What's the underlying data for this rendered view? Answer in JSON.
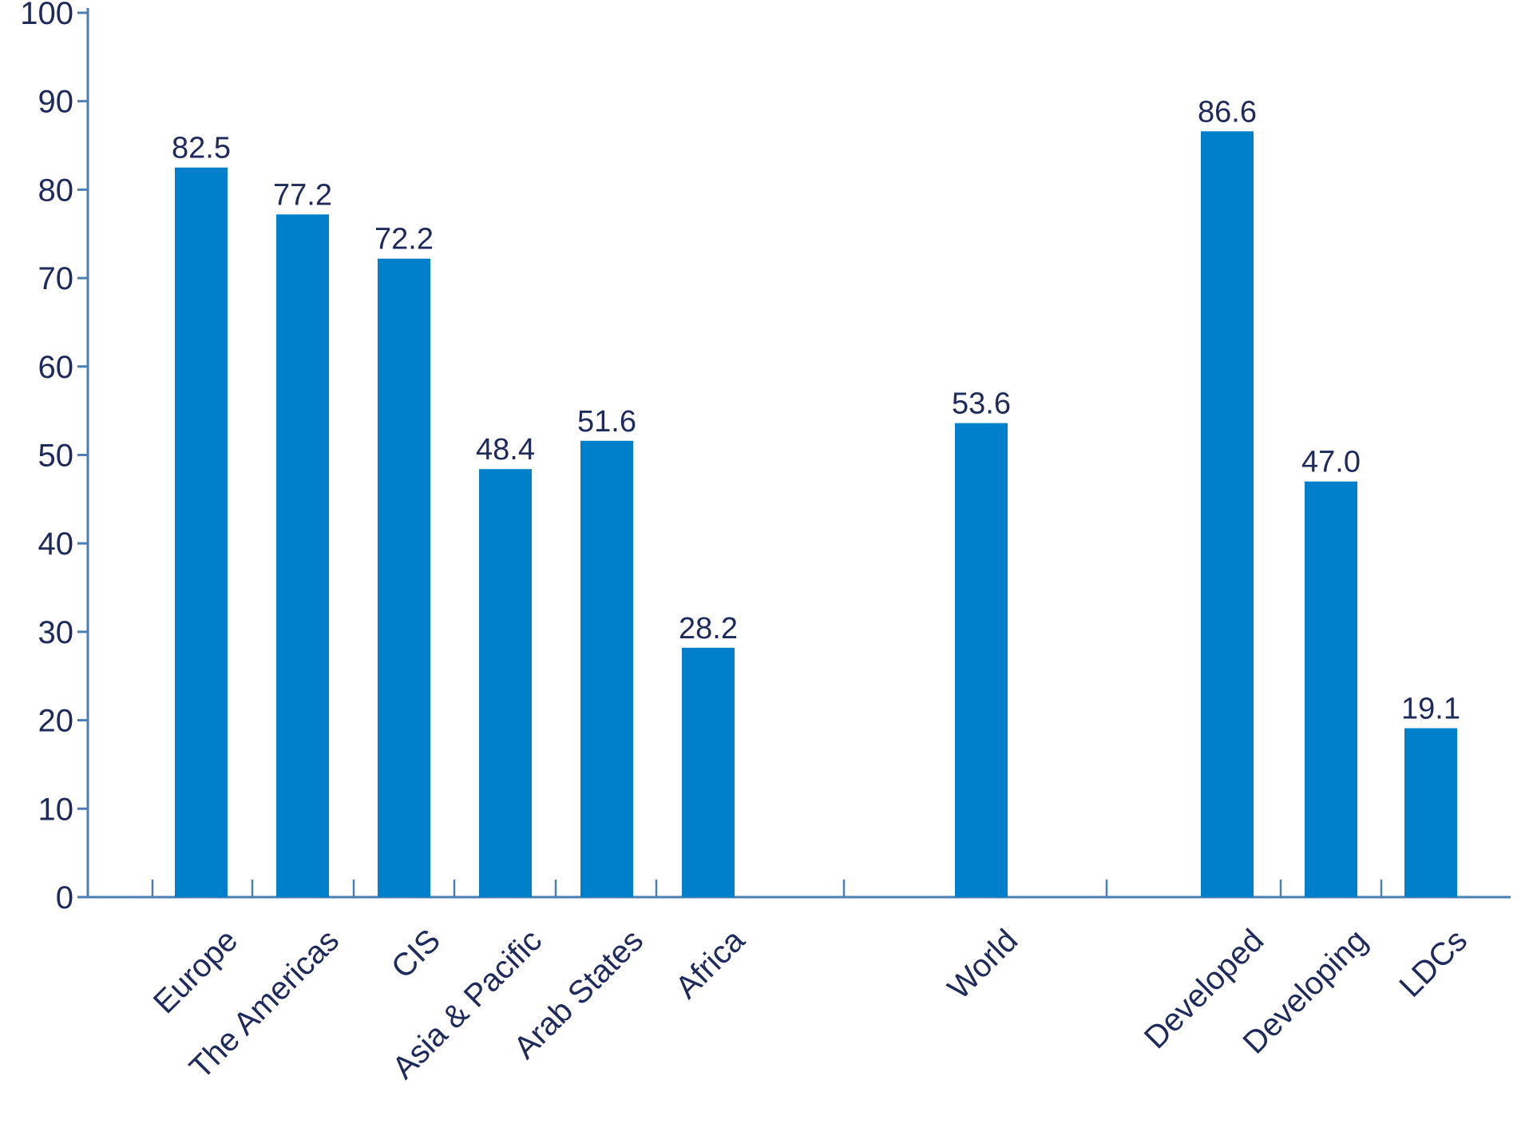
{
  "chart_data": {
    "type": "bar",
    "categories": [
      "Europe",
      "The Americas",
      "CIS",
      "Asia & Pacific",
      "Arab States",
      "Africa",
      "World",
      "Developed",
      "Developing",
      "LDCs"
    ],
    "values": [
      82.5,
      77.2,
      72.2,
      48.4,
      51.6,
      28.2,
      53.6,
      86.6,
      47.0,
      19.1
    ],
    "value_labels": [
      "82.5",
      "77.2",
      "72.2",
      "48.4",
      "51.6",
      "28.2",
      "53.6",
      "86.6",
      "47.0",
      "19.1"
    ],
    "groups": [
      {
        "categories": [
          "Europe",
          "The Americas",
          "CIS",
          "Asia & Pacific",
          "Arab States",
          "Africa"
        ]
      },
      {
        "categories": [
          "World"
        ]
      },
      {
        "categories": [
          "Developed",
          "Developing",
          "LDCs"
        ]
      }
    ],
    "ylim": [
      0,
      100
    ],
    "yticks": [
      "0",
      "10",
      "20",
      "30",
      "40",
      "50",
      "60",
      "70",
      "80",
      "90",
      "100"
    ],
    "grid": false,
    "legend": "none",
    "colors": {
      "bar": "#0080CA",
      "axis": "#4A7FB5",
      "text": "#1F2A5C"
    }
  }
}
